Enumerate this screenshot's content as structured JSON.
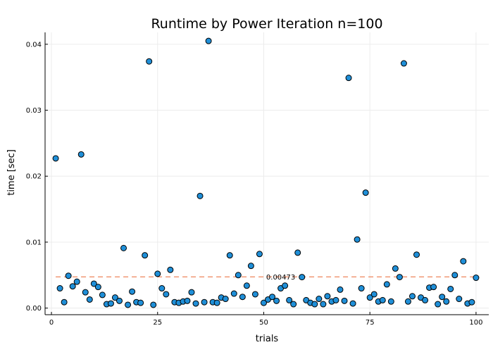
{
  "chart_data": {
    "type": "scatter",
    "title": "Runtime by Power Iteration  n=100",
    "xlabel": "trials",
    "ylabel": "time [sec]",
    "xlim": [
      -1.5,
      103
    ],
    "ylim": [
      -0.001,
      0.0418
    ],
    "x_ticks": [
      0,
      25,
      50,
      75,
      100
    ],
    "x_tick_labels": [
      "0",
      "25",
      "50",
      "75",
      "100"
    ],
    "y_ticks": [
      0.0,
      0.01,
      0.02,
      0.03,
      0.04
    ],
    "y_tick_labels": [
      "0.00",
      "0.01",
      "0.02",
      "0.03",
      "0.04"
    ],
    "grid": true,
    "legend": "none",
    "point_color": "#1f8fd8",
    "point_edge_color": "#000000",
    "mean_line_color": "#f0906a",
    "mean_value": 0.00473,
    "mean_label": "0.00473",
    "series": [
      {
        "x": [
          1,
          2,
          3,
          4,
          5,
          6,
          7,
          8,
          9,
          10,
          11,
          12,
          13,
          14,
          15,
          16,
          17,
          18,
          19,
          20,
          21,
          22,
          23,
          24,
          25,
          26,
          27,
          28,
          29,
          30,
          31,
          32,
          33,
          34,
          35,
          36,
          37,
          38,
          39,
          40,
          41,
          42,
          43,
          44,
          45,
          46,
          47,
          48,
          49,
          50,
          51,
          52,
          53,
          54,
          55,
          56,
          57,
          58,
          59,
          60,
          61,
          62,
          63,
          64,
          65,
          66,
          67,
          68,
          69,
          70,
          71,
          72,
          73,
          74,
          75,
          76,
          77,
          78,
          79,
          80,
          81,
          82,
          83,
          84,
          85,
          86,
          87,
          88,
          89,
          90,
          91,
          92,
          93,
          94,
          95,
          96,
          97,
          98,
          99,
          100
        ],
        "values": [
          0.0227,
          0.003,
          0.0009,
          0.0049,
          0.0033,
          0.004,
          0.0233,
          0.0024,
          0.0013,
          0.0037,
          0.0032,
          0.002,
          0.0006,
          0.0007,
          0.0016,
          0.0011,
          0.0091,
          0.0005,
          0.0025,
          0.0009,
          0.0008,
          0.008,
          0.0374,
          0.0005,
          0.0052,
          0.003,
          0.0021,
          0.0058,
          0.0009,
          0.0008,
          0.001,
          0.0011,
          0.0024,
          0.0007,
          0.017,
          0.0009,
          0.0405,
          0.0009,
          0.0008,
          0.0016,
          0.0014,
          0.008,
          0.0022,
          0.005,
          0.0017,
          0.0034,
          0.0064,
          0.0021,
          0.0082,
          0.0008,
          0.0013,
          0.0017,
          0.0011,
          0.003,
          0.0034,
          0.0012,
          0.0006,
          0.0084,
          0.0047,
          0.0012,
          0.0008,
          0.0006,
          0.0014,
          0.0006,
          0.0018,
          0.001,
          0.0012,
          0.0028,
          0.0011,
          0.0349,
          0.0007,
          0.0104,
          0.003,
          0.0175,
          0.0016,
          0.0021,
          0.001,
          0.0012,
          0.0036,
          0.001,
          0.006,
          0.0047,
          0.0371,
          0.001,
          0.0018,
          0.0081,
          0.0016,
          0.0012,
          0.0031,
          0.0032,
          0.0006,
          0.0017,
          0.001,
          0.0029,
          0.005,
          0.0014,
          0.0071,
          0.0007,
          0.0009,
          0.0046
        ]
      }
    ]
  }
}
